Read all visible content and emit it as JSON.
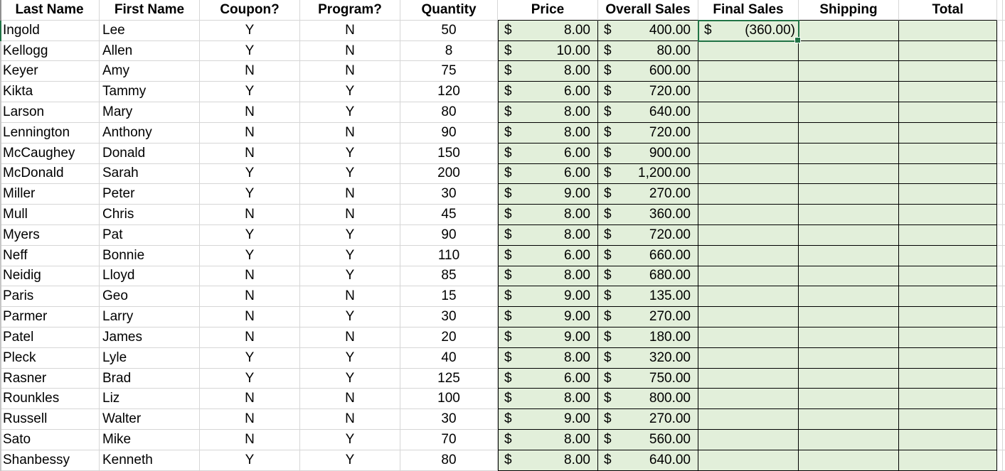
{
  "app": {
    "type": "spreadsheet-worksheet"
  },
  "currency_symbol": "$",
  "columns": [
    {
      "id": "last_name",
      "label": "Last Name",
      "type": "text"
    },
    {
      "id": "first_name",
      "label": "First Name",
      "type": "text"
    },
    {
      "id": "coupon",
      "label": "Coupon?",
      "type": "center"
    },
    {
      "id": "program",
      "label": "Program?",
      "type": "center"
    },
    {
      "id": "quantity",
      "label": "Quantity",
      "type": "center"
    },
    {
      "id": "price",
      "label": "Price",
      "type": "currency"
    },
    {
      "id": "overall_sales",
      "label": "Overall Sales",
      "type": "currency"
    },
    {
      "id": "final_sales",
      "label": "Final Sales",
      "type": "currency"
    },
    {
      "id": "shipping",
      "label": "Shipping",
      "type": "currency"
    },
    {
      "id": "total",
      "label": "Total",
      "type": "currency"
    }
  ],
  "rows": [
    {
      "last_name": "Ingold",
      "first_name": "Lee",
      "coupon": "Y",
      "program": "N",
      "quantity": "50",
      "price": "8.00",
      "overall_sales": "400.00",
      "final_sales": "(360.00)",
      "shipping": "",
      "total": ""
    },
    {
      "last_name": "Kellogg",
      "first_name": "Allen",
      "coupon": "Y",
      "program": "N",
      "quantity": "8",
      "price": "10.00",
      "overall_sales": "80.00",
      "final_sales": "",
      "shipping": "",
      "total": ""
    },
    {
      "last_name": "Keyer",
      "first_name": "Amy",
      "coupon": "N",
      "program": "N",
      "quantity": "75",
      "price": "8.00",
      "overall_sales": "600.00",
      "final_sales": "",
      "shipping": "",
      "total": ""
    },
    {
      "last_name": "Kikta",
      "first_name": "Tammy",
      "coupon": "Y",
      "program": "Y",
      "quantity": "120",
      "price": "6.00",
      "overall_sales": "720.00",
      "final_sales": "",
      "shipping": "",
      "total": ""
    },
    {
      "last_name": "Larson",
      "first_name": "Mary",
      "coupon": "N",
      "program": "Y",
      "quantity": "80",
      "price": "8.00",
      "overall_sales": "640.00",
      "final_sales": "",
      "shipping": "",
      "total": ""
    },
    {
      "last_name": "Lennington",
      "first_name": "Anthony",
      "coupon": "N",
      "program": "N",
      "quantity": "90",
      "price": "8.00",
      "overall_sales": "720.00",
      "final_sales": "",
      "shipping": "",
      "total": ""
    },
    {
      "last_name": "McCaughey",
      "first_name": "Donald",
      "coupon": "N",
      "program": "Y",
      "quantity": "150",
      "price": "6.00",
      "overall_sales": "900.00",
      "final_sales": "",
      "shipping": "",
      "total": ""
    },
    {
      "last_name": "McDonald",
      "first_name": "Sarah",
      "coupon": "Y",
      "program": "Y",
      "quantity": "200",
      "price": "6.00",
      "overall_sales": "1,200.00",
      "final_sales": "",
      "shipping": "",
      "total": ""
    },
    {
      "last_name": "Miller",
      "first_name": "Peter",
      "coupon": "Y",
      "program": "N",
      "quantity": "30",
      "price": "9.00",
      "overall_sales": "270.00",
      "final_sales": "",
      "shipping": "",
      "total": ""
    },
    {
      "last_name": "Mull",
      "first_name": "Chris",
      "coupon": "N",
      "program": "N",
      "quantity": "45",
      "price": "8.00",
      "overall_sales": "360.00",
      "final_sales": "",
      "shipping": "",
      "total": ""
    },
    {
      "last_name": "Myers",
      "first_name": "Pat",
      "coupon": "Y",
      "program": "Y",
      "quantity": "90",
      "price": "8.00",
      "overall_sales": "720.00",
      "final_sales": "",
      "shipping": "",
      "total": ""
    },
    {
      "last_name": "Neff",
      "first_name": "Bonnie",
      "coupon": "Y",
      "program": "Y",
      "quantity": "110",
      "price": "6.00",
      "overall_sales": "660.00",
      "final_sales": "",
      "shipping": "",
      "total": ""
    },
    {
      "last_name": "Neidig",
      "first_name": "Lloyd",
      "coupon": "N",
      "program": "Y",
      "quantity": "85",
      "price": "8.00",
      "overall_sales": "680.00",
      "final_sales": "",
      "shipping": "",
      "total": ""
    },
    {
      "last_name": "Paris",
      "first_name": "Geo",
      "coupon": "N",
      "program": "N",
      "quantity": "15",
      "price": "9.00",
      "overall_sales": "135.00",
      "final_sales": "",
      "shipping": "",
      "total": ""
    },
    {
      "last_name": "Parmer",
      "first_name": "Larry",
      "coupon": "N",
      "program": "Y",
      "quantity": "30",
      "price": "9.00",
      "overall_sales": "270.00",
      "final_sales": "",
      "shipping": "",
      "total": ""
    },
    {
      "last_name": "Patel",
      "first_name": "James",
      "coupon": "N",
      "program": "N",
      "quantity": "20",
      "price": "9.00",
      "overall_sales": "180.00",
      "final_sales": "",
      "shipping": "",
      "total": ""
    },
    {
      "last_name": "Pleck",
      "first_name": "Lyle",
      "coupon": "Y",
      "program": "Y",
      "quantity": "40",
      "price": "8.00",
      "overall_sales": "320.00",
      "final_sales": "",
      "shipping": "",
      "total": ""
    },
    {
      "last_name": "Rasner",
      "first_name": "Brad",
      "coupon": "Y",
      "program": "Y",
      "quantity": "125",
      "price": "6.00",
      "overall_sales": "750.00",
      "final_sales": "",
      "shipping": "",
      "total": ""
    },
    {
      "last_name": "Rounkles",
      "first_name": "Liz",
      "coupon": "N",
      "program": "N",
      "quantity": "100",
      "price": "8.00",
      "overall_sales": "800.00",
      "final_sales": "",
      "shipping": "",
      "total": ""
    },
    {
      "last_name": "Russell",
      "first_name": "Walter",
      "coupon": "N",
      "program": "N",
      "quantity": "30",
      "price": "9.00",
      "overall_sales": "270.00",
      "final_sales": "",
      "shipping": "",
      "total": ""
    },
    {
      "last_name": "Sato",
      "first_name": "Mike",
      "coupon": "N",
      "program": "Y",
      "quantity": "70",
      "price": "8.00",
      "overall_sales": "560.00",
      "final_sales": "",
      "shipping": "",
      "total": ""
    },
    {
      "last_name": "Shanbessy",
      "first_name": "Kenneth",
      "coupon": "Y",
      "program": "Y",
      "quantity": "80",
      "price": "8.00",
      "overall_sales": "640.00",
      "final_sales": "",
      "shipping": "",
      "total": ""
    }
  ],
  "selection": {
    "row_index": 0,
    "column_id": "final_sales",
    "value": "(360.00)"
  },
  "colors": {
    "green_fill": "#e2efda",
    "black_border": "#000000",
    "gridline": "#d6d6d6",
    "selection_green": "#217346",
    "text": "#000000"
  }
}
